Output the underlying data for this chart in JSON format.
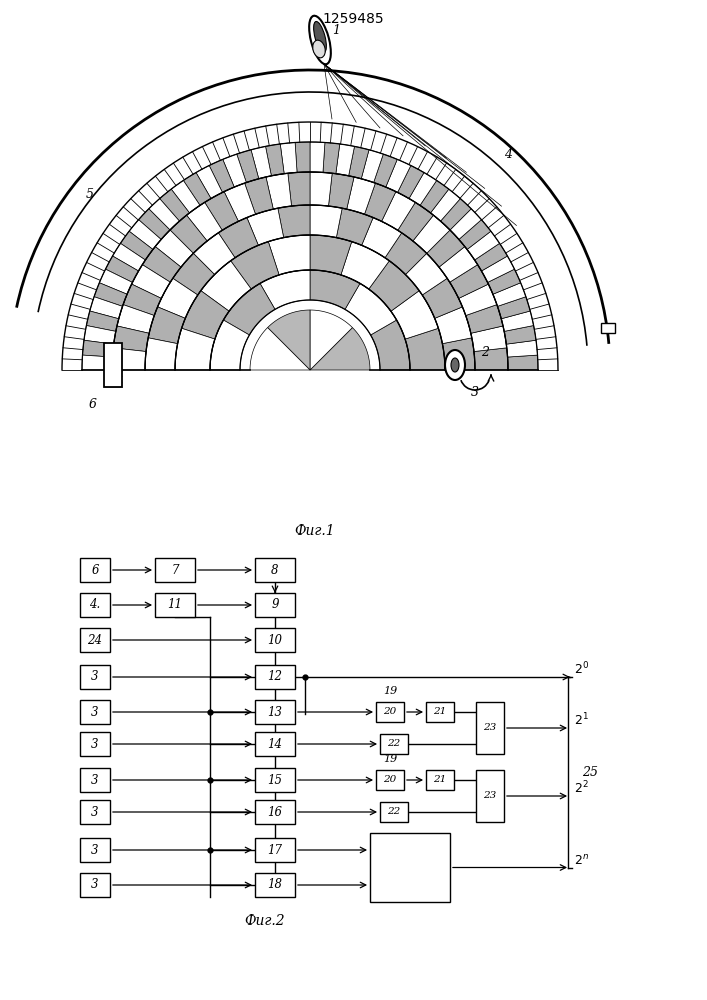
{
  "title": "1259485",
  "fig1_label": "Фиг.1",
  "fig2_label": "Фиг.2",
  "bg_color": "#ffffff"
}
